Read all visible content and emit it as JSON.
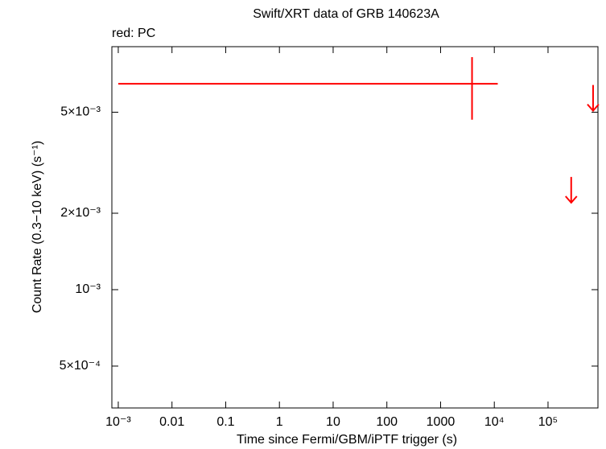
{
  "chart_data": {
    "type": "scatter",
    "title": "Swift/XRT data of GRB 140623A",
    "subtitle": "red: PC",
    "x_label": "Time since Fermi/GBM/iPTF trigger (s)",
    "y_label": "Count Rate (0.3−10 keV) (s⁻¹)",
    "log_x": true,
    "log_y": true,
    "xlim": [
      0.00076,
      850000
    ],
    "ylim": [
      0.000342,
      0.00906
    ],
    "xticks": [
      {
        "value": 0.001,
        "label": "10⁻³"
      },
      0.01,
      0.1,
      1,
      10,
      100,
      1000,
      {
        "value": 10000,
        "label": "10⁴"
      },
      {
        "value": 100000,
        "label": "10⁵"
      }
    ],
    "yticks": [
      {
        "value": 0.0005,
        "label": "5×10⁻⁴"
      },
      {
        "value": 0.001,
        "label": "10⁻³"
      },
      {
        "value": 0.002,
        "label": "2×10⁻³"
      },
      {
        "value": 0.005,
        "label": "5×10⁻³"
      }
    ],
    "series": [
      {
        "color": "#ff0000",
        "x": [
          3850
        ],
        "y": [
          0.00647
        ],
        "x_min": [
          0.001
        ],
        "x_max": [
          11600
        ],
        "y_min": [
          0.00467
        ],
        "y_max": [
          0.00824
        ]
      }
    ],
    "upper_limits": {
      "color": "#ff0000",
      "x": [
        270000,
        690000
      ],
      "y": [
        0.00278,
        0.0064
      ]
    }
  }
}
